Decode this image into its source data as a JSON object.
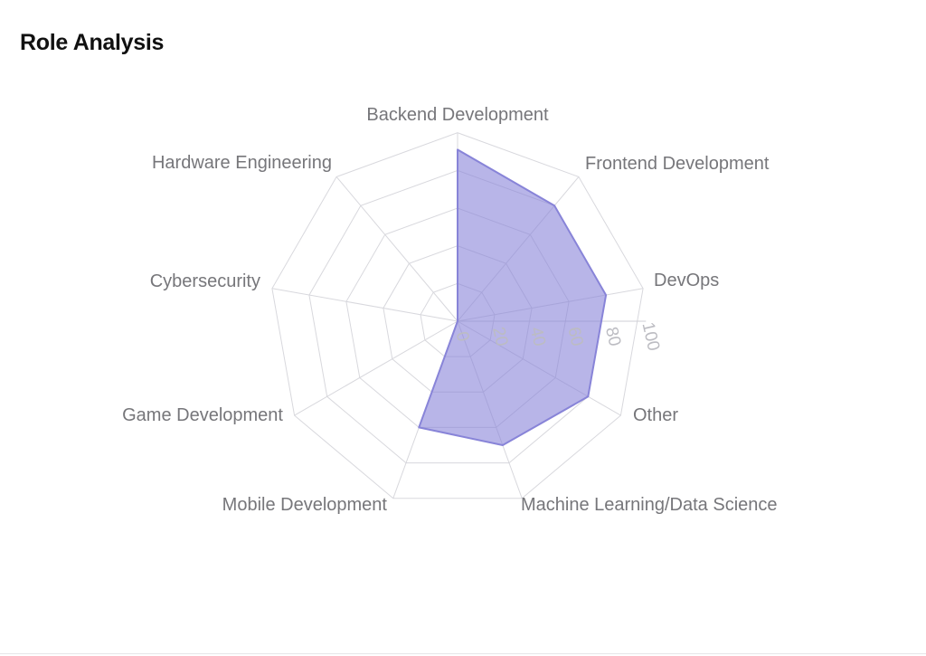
{
  "page": {
    "title": "Role Analysis"
  },
  "chart_data": {
    "type": "radar",
    "title": "Role Analysis",
    "categories": [
      "Backend Development",
      "Frontend Development",
      "DevOps",
      "Other",
      "Machine Learning/Data Science",
      "Mobile Development",
      "Game Development",
      "Cybersecurity",
      "Hardware Engineering"
    ],
    "series": [
      {
        "name": "Role Analysis",
        "values": [
          91,
          80,
          80,
          80,
          70,
          60,
          0,
          0,
          0
        ]
      }
    ],
    "radial_axis": {
      "min": 0,
      "max": 100,
      "ticks": [
        0,
        20,
        40,
        60,
        80,
        100
      ]
    },
    "layout_hints": {
      "start_angle_deg": 90,
      "direction": "clockwise",
      "grid_shape": "polygon",
      "legend": "none",
      "tick_label_rotation_deg": 77
    },
    "colors": {
      "series_fill": "#8884d8",
      "series_fill_opacity": 0.6,
      "series_stroke": "#8884d8",
      "grid_line": "#d8d8dd",
      "radial_axis_line": "#cfcfd4",
      "category_label": "#76767a",
      "tick_label": "#bcbcc2",
      "title": "#111111"
    }
  }
}
